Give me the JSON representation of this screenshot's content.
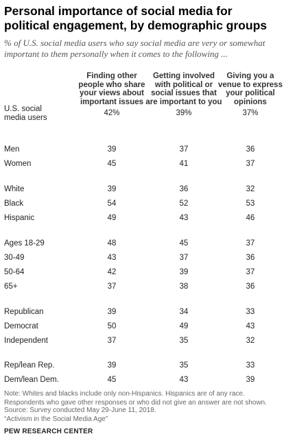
{
  "header": {
    "title": "Personal importance of social media for political engagement,  by demographic  groups",
    "subtitle": "% of U.S. social media users who say social media are very or somewhat important to them personally when it comes to the following ..."
  },
  "chart_data": {
    "type": "table",
    "columns": [
      "Finding other people who share your views about important issues",
      "Getting involved with political or social issues that are important to you",
      "Giving you a venue to express your political opinions"
    ],
    "rows": [
      {
        "label": "U.S. social media users",
        "values": [
          "42%",
          "39%",
          "37%"
        ]
      },
      {
        "label": "Men",
        "values": [
          "39",
          "37",
          "36"
        ]
      },
      {
        "label": "Women",
        "values": [
          "45",
          "41",
          "37"
        ]
      },
      {
        "label": "White",
        "values": [
          "39",
          "36",
          "32"
        ]
      },
      {
        "label": "Black",
        "values": [
          "54",
          "52",
          "53"
        ]
      },
      {
        "label": "Hispanic",
        "values": [
          "49",
          "43",
          "46"
        ]
      },
      {
        "label": "Ages 18-29",
        "values": [
          "48",
          "45",
          "37"
        ]
      },
      {
        "label": "30-49",
        "values": [
          "43",
          "37",
          "36"
        ]
      },
      {
        "label": "50-64",
        "values": [
          "42",
          "39",
          "37"
        ]
      },
      {
        "label": "65+",
        "values": [
          "37",
          "38",
          "36"
        ]
      },
      {
        "label": "Republican",
        "values": [
          "39",
          "34",
          "33"
        ]
      },
      {
        "label": "Democrat",
        "values": [
          "50",
          "49",
          "43"
        ]
      },
      {
        "label": "Independent",
        "values": [
          "37",
          "35",
          "32"
        ]
      },
      {
        "label": "Rep/lean Rep.",
        "values": [
          "39",
          "35",
          "33"
        ]
      },
      {
        "label": "Dem/lean Dem.",
        "values": [
          "45",
          "43",
          "39"
        ]
      }
    ]
  },
  "footer": {
    "note": "Note: Whites and blacks include only non-Hispanics. Hispanics are of any race. Respondents who gave other responses or who did not give an answer are not shown.",
    "source": "Source: Survey conducted May 29-June 11, 2018.\n“Activism in the Social Media Age”",
    "credit": "PEW RESEARCH CENTER"
  }
}
